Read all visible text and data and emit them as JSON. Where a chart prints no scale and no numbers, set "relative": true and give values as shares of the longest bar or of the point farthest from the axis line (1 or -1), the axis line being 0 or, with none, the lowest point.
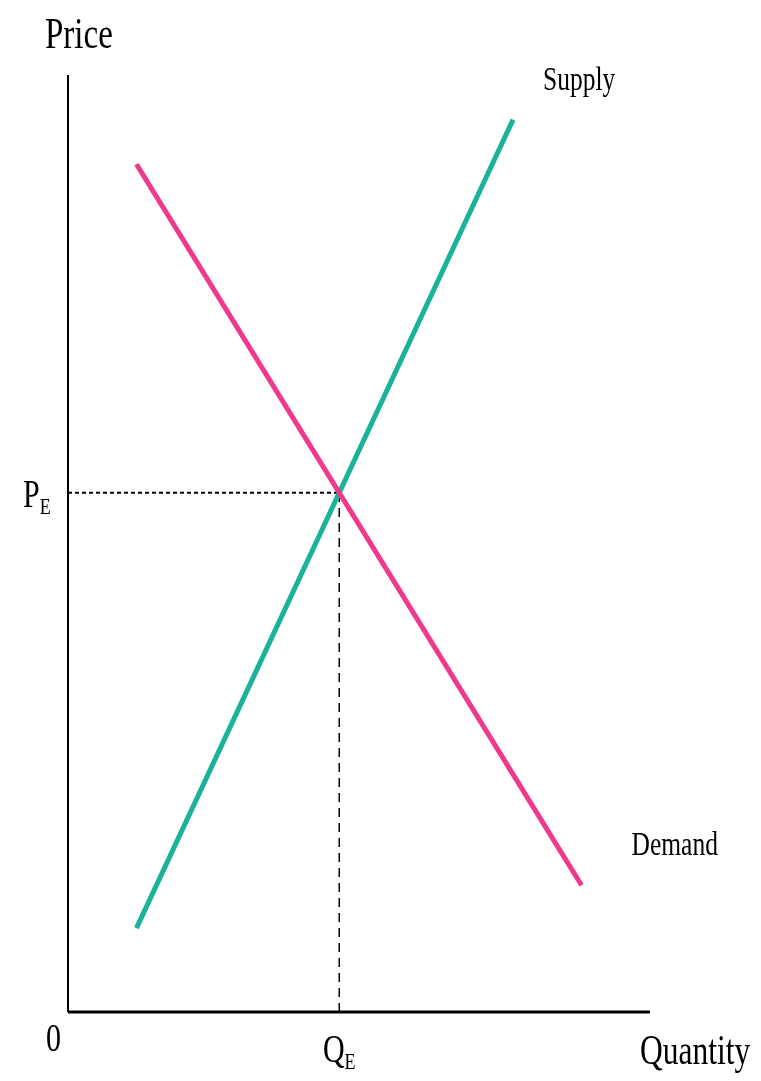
{
  "chart_data": {
    "type": "line",
    "relative": true,
    "xlabel": "Quantity",
    "ylabel": "Price",
    "annotations": [
      "0",
      "P$_{E}$",
      "Q$_{E}$"
    ],
    "categories": [
      null,
      null,
      null,
      null,
      null,
      null,
      null,
      null,
      null,
      null,
      null,
      null,
      null,
      null,
      null,
      null,
      null,
      null
    ],
    "series": [
      {
        "name": "Supply",
        "color": "#1ab39a",
        "values": [
          null,
          null,
          0.094,
          null,
          null,
          null,
          null,
          null,
          null,
          null,
          null,
          null,
          null,
          1,
          null,
          null,
          null,
          null
        ]
      },
      {
        "name": "Demand",
        "color": "#f0388c",
        "values": [
          null,
          null,
          0.95,
          null,
          null,
          null,
          null,
          null,
          null,
          null,
          null,
          null,
          null,
          null,
          null,
          0.142,
          null,
          null
        ]
      }
    ],
    "legend": false,
    "grid": false,
    "marker": "none",
    "line_style": "solid"
  }
}
